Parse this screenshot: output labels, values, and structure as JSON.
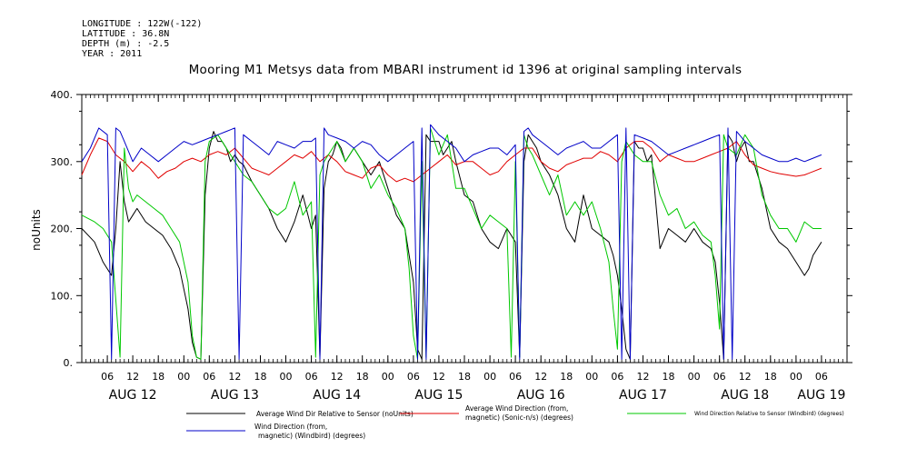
{
  "header": {
    "longitude": "LONGITUDE : 122W(-122)",
    "latitude": "LATITUDE : 36.8N",
    "depth": "DEPTH (m) : -2.5",
    "year": "YEAR : 2011"
  },
  "chart_data": {
    "type": "line",
    "title": "Mooring M1 Metsys data from MBARI instrument id 1396 at original sampling intervals",
    "ylabel": "noUnits",
    "xlabel": "",
    "ylim": [
      0,
      400
    ],
    "y_ticks": [
      "0.",
      "100.",
      "200.",
      "300.",
      "400."
    ],
    "x_range_hours": [
      0,
      180
    ],
    "hour_ticks": [
      {
        "h": 6,
        "label": "06"
      },
      {
        "h": 12,
        "label": "12"
      },
      {
        "h": 18,
        "label": "18"
      },
      {
        "h": 24,
        "label": "00"
      },
      {
        "h": 30,
        "label": "06"
      },
      {
        "h": 36,
        "label": "12"
      },
      {
        "h": 42,
        "label": "18"
      },
      {
        "h": 48,
        "label": "00"
      },
      {
        "h": 54,
        "label": "06"
      },
      {
        "h": 60,
        "label": "12"
      },
      {
        "h": 66,
        "label": "18"
      },
      {
        "h": 72,
        "label": "00"
      },
      {
        "h": 78,
        "label": "06"
      },
      {
        "h": 84,
        "label": "12"
      },
      {
        "h": 90,
        "label": "18"
      },
      {
        "h": 96,
        "label": "00"
      },
      {
        "h": 102,
        "label": "06"
      },
      {
        "h": 108,
        "label": "12"
      },
      {
        "h": 114,
        "label": "18"
      },
      {
        "h": 120,
        "label": "00"
      },
      {
        "h": 126,
        "label": "06"
      },
      {
        "h": 132,
        "label": "12"
      },
      {
        "h": 138,
        "label": "18"
      },
      {
        "h": 144,
        "label": "00"
      },
      {
        "h": 150,
        "label": "06"
      },
      {
        "h": 156,
        "label": "12"
      },
      {
        "h": 162,
        "label": "18"
      },
      {
        "h": 168,
        "label": "00"
      },
      {
        "h": 174,
        "label": "06"
      }
    ],
    "day_labels": [
      {
        "h": 12,
        "label": "AUG 12"
      },
      {
        "h": 36,
        "label": "AUG 13"
      },
      {
        "h": 60,
        "label": "AUG 14"
      },
      {
        "h": 84,
        "label": "AUG 15"
      },
      {
        "h": 108,
        "label": "AUG 16"
      },
      {
        "h": 132,
        "label": "AUG 17"
      },
      {
        "h": 156,
        "label": "AUG 18"
      },
      {
        "h": 174,
        "label": "AUG 19"
      }
    ],
    "series": [
      {
        "name": "Average Wind Dir Relative to Sensor (noUnits)",
        "color": "#000000",
        "x": [
          0,
          3,
          5,
          7,
          8,
          9,
          10,
          11,
          12,
          13,
          15,
          17,
          19,
          21,
          23,
          25,
          26,
          27,
          28,
          29,
          30,
          31,
          32,
          33,
          34,
          35,
          36,
          37,
          38,
          40,
          42,
          44,
          46,
          48,
          50,
          52,
          54,
          55,
          56,
          57,
          58,
          59,
          60,
          61,
          62,
          64,
          66,
          68,
          70,
          72,
          74,
          76,
          77,
          78,
          79,
          80,
          81,
          82,
          84,
          85,
          86,
          87,
          88,
          90,
          92,
          94,
          96,
          98,
          100,
          101,
          102,
          103,
          104,
          105,
          106,
          107,
          108,
          110,
          112,
          114,
          116,
          118,
          120,
          122,
          124,
          125,
          126,
          127,
          128,
          129,
          130,
          131,
          132,
          133,
          134,
          135,
          136,
          138,
          140,
          142,
          144,
          146,
          148,
          149,
          150,
          151,
          152,
          153,
          154,
          155,
          156,
          157,
          158,
          160,
          162,
          164,
          166,
          168,
          170,
          171,
          172,
          173,
          174
        ],
        "y": [
          200,
          180,
          150,
          130,
          200,
          300,
          240,
          210,
          220,
          230,
          210,
          200,
          190,
          170,
          140,
          80,
          30,
          8,
          5,
          250,
          320,
          345,
          330,
          330,
          320,
          300,
          310,
          300,
          295,
          270,
          250,
          230,
          200,
          180,
          210,
          250,
          200,
          220,
          8,
          260,
          300,
          310,
          330,
          320,
          300,
          320,
          300,
          280,
          300,
          260,
          220,
          200,
          160,
          120,
          20,
          5,
          340,
          330,
          330,
          310,
          320,
          330,
          300,
          250,
          240,
          200,
          180,
          170,
          200,
          190,
          180,
          8,
          300,
          340,
          330,
          320,
          300,
          280,
          250,
          200,
          180,
          250,
          200,
          190,
          180,
          160,
          130,
          80,
          20,
          5,
          330,
          320,
          320,
          300,
          310,
          240,
          170,
          200,
          190,
          180,
          200,
          180,
          170,
          150,
          90,
          5,
          340,
          330,
          300,
          320,
          330,
          300,
          300,
          260,
          200,
          180,
          170,
          150,
          130,
          140,
          160,
          170,
          180
        ]
      },
      {
        "name": "Average Wind Direction (from, magnetic) (Sonic-n/s) (degrees)",
        "color": "#e00000",
        "x": [
          0,
          2,
          4,
          6,
          8,
          10,
          12,
          14,
          16,
          18,
          20,
          22,
          24,
          26,
          28,
          30,
          32,
          34,
          36,
          38,
          40,
          42,
          44,
          46,
          48,
          50,
          52,
          54,
          56,
          58,
          60,
          62,
          64,
          66,
          68,
          70,
          72,
          74,
          76,
          78,
          80,
          82,
          84,
          86,
          88,
          90,
          92,
          94,
          96,
          98,
          100,
          102,
          104,
          106,
          108,
          110,
          112,
          114,
          116,
          118,
          120,
          122,
          124,
          126,
          128,
          130,
          132,
          134,
          136,
          138,
          140,
          142,
          144,
          146,
          148,
          150,
          152,
          154,
          156,
          158,
          160,
          162,
          164,
          166,
          168,
          170,
          172,
          174
        ],
        "y": [
          280,
          310,
          335,
          330,
          310,
          300,
          285,
          300,
          290,
          275,
          285,
          290,
          300,
          305,
          300,
          310,
          315,
          310,
          320,
          305,
          290,
          285,
          280,
          290,
          300,
          310,
          305,
          315,
          300,
          310,
          300,
          285,
          280,
          275,
          290,
          295,
          280,
          270,
          275,
          270,
          280,
          290,
          300,
          310,
          295,
          300,
          300,
          290,
          280,
          285,
          300,
          310,
          320,
          320,
          300,
          290,
          285,
          295,
          300,
          305,
          305,
          315,
          310,
          300,
          320,
          330,
          330,
          320,
          300,
          310,
          305,
          300,
          300,
          305,
          310,
          315,
          320,
          330,
          310,
          295,
          290,
          285,
          282,
          280,
          278,
          280,
          285,
          290
        ]
      },
      {
        "name": "Wind Direction Relative to Sensor (Windbird) (degrees)",
        "color": "#00c800",
        "x": [
          0,
          3,
          5,
          7,
          9,
          10,
          11,
          12,
          13,
          15,
          17,
          19,
          21,
          23,
          25,
          26,
          27,
          28,
          29,
          30,
          32,
          34,
          36,
          38,
          40,
          42,
          44,
          46,
          48,
          50,
          52,
          54,
          55,
          56,
          57,
          58,
          60,
          62,
          64,
          66,
          68,
          70,
          72,
          74,
          76,
          77,
          78,
          79,
          80,
          81,
          82,
          84,
          86,
          88,
          90,
          92,
          94,
          96,
          98,
          100,
          101,
          102,
          103,
          104,
          105,
          106,
          108,
          110,
          112,
          114,
          116,
          118,
          120,
          122,
          124,
          125,
          126,
          127,
          128,
          130,
          132,
          134,
          136,
          138,
          140,
          142,
          144,
          146,
          148,
          149,
          150,
          151,
          152,
          154,
          156,
          158,
          160,
          162,
          164,
          166,
          168,
          170,
          172,
          174
        ],
        "y": [
          220,
          210,
          200,
          180,
          8,
          320,
          260,
          240,
          250,
          240,
          230,
          220,
          200,
          180,
          120,
          40,
          8,
          5,
          300,
          330,
          340,
          320,
          300,
          280,
          270,
          250,
          230,
          220,
          230,
          270,
          220,
          240,
          8,
          280,
          300,
          310,
          330,
          300,
          320,
          300,
          260,
          280,
          250,
          230,
          200,
          140,
          40,
          5,
          300,
          8,
          350,
          310,
          340,
          260,
          260,
          230,
          200,
          220,
          210,
          200,
          8,
          300,
          8,
          340,
          320,
          310,
          280,
          250,
          280,
          220,
          240,
          220,
          240,
          200,
          150,
          80,
          20,
          300,
          330,
          310,
          300,
          300,
          250,
          220,
          230,
          200,
          210,
          190,
          180,
          130,
          50,
          340,
          320,
          310,
          340,
          320,
          250,
          220,
          200,
          200,
          180,
          210,
          200,
          200
        ]
      },
      {
        "name": "Wind Direction (from, magnetic) (Windbird) (degrees)",
        "color": "#0000c8",
        "x": [
          0,
          2,
          4,
          6,
          7,
          8,
          9,
          10,
          12,
          14,
          16,
          18,
          20,
          22,
          24,
          26,
          28,
          30,
          32,
          34,
          36,
          37,
          38,
          40,
          42,
          44,
          46,
          48,
          50,
          52,
          54,
          55,
          56,
          57,
          58,
          60,
          62,
          64,
          66,
          68,
          70,
          72,
          74,
          76,
          78,
          79,
          80,
          81,
          82,
          84,
          86,
          88,
          90,
          92,
          94,
          96,
          98,
          100,
          102,
          103,
          104,
          105,
          106,
          108,
          110,
          112,
          114,
          116,
          118,
          120,
          122,
          124,
          126,
          127,
          128,
          129,
          130,
          132,
          134,
          136,
          138,
          140,
          142,
          144,
          146,
          148,
          150,
          151,
          152,
          153,
          154,
          156,
          158,
          160,
          162,
          164,
          166,
          168,
          170,
          172,
          174
        ],
        "y": [
          300,
          320,
          350,
          340,
          5,
          350,
          345,
          330,
          300,
          320,
          310,
          300,
          310,
          320,
          330,
          325,
          330,
          335,
          340,
          345,
          350,
          5,
          340,
          330,
          320,
          310,
          330,
          325,
          320,
          330,
          330,
          335,
          5,
          350,
          340,
          335,
          330,
          320,
          330,
          325,
          310,
          300,
          310,
          320,
          330,
          5,
          350,
          5,
          355,
          340,
          330,
          320,
          300,
          310,
          315,
          320,
          320,
          310,
          325,
          5,
          345,
          350,
          340,
          330,
          320,
          310,
          320,
          325,
          330,
          320,
          320,
          330,
          340,
          5,
          350,
          5,
          340,
          335,
          330,
          320,
          310,
          315,
          320,
          325,
          330,
          335,
          340,
          5,
          350,
          5,
          345,
          330,
          320,
          310,
          305,
          300,
          300,
          305,
          300,
          305,
          310
        ]
      }
    ]
  },
  "legend": {
    "black": "Average Wind Dir Relative to Sensor (noUnits)",
    "red_line1": "Average Wind Direction (from,",
    "red_line2": "magnetic) (Sonic-n/s) (degrees)",
    "green": "Wind Direction Relative to Sensor (Windbird) (degrees)",
    "blue_line1": "Wind Direction (from,",
    "blue_line2": "magnetic) (Windbird) (degrees)"
  }
}
